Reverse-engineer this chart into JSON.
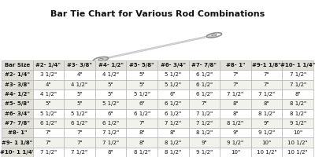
{
  "title": "Bar Tie Chart for Various Rod Combinations",
  "columns": [
    "Bar Size",
    "#2- 1/4\"",
    "#3- 3/8\"",
    "#4- 1/2\"",
    "#5- 5/8\"",
    "#6- 3/4\"",
    "#7- 7/8\"",
    "#8- 1\"",
    "#9-1 1/8\"",
    "#10- 1 1/4\""
  ],
  "rows": [
    [
      "#2- 1/4\"",
      "3 1/2\"",
      "4\"",
      "4 1/2\"",
      "5\"",
      "5 1/2\"",
      "6 1/2\"",
      "7\"",
      "7\"",
      "7 1/2\""
    ],
    [
      "#3- 3/8\"",
      "4\"",
      "4 1/2\"",
      "5\"",
      "5\"",
      "5 1/2\"",
      "6 1/2\"",
      "7\"",
      "7\"",
      "7 1/2\""
    ],
    [
      "#4- 1/2\"",
      "4 1/2\"",
      "5\"",
      "5\"",
      "5 1/2\"",
      "6\"",
      "6 1/2\"",
      "7 1/2\"",
      "7 1/2\"",
      "8\""
    ],
    [
      "#5- 5/8\"",
      "5\"",
      "5\"",
      "5 1/2\"",
      "6\"",
      "6 1/2\"",
      "7\"",
      "8\"",
      "8\"",
      "8 1/2\""
    ],
    [
      "#6- 3/4\"",
      "5 1/2\"",
      "5 1/2\"",
      "6\"",
      "6 1/2\"",
      "6 1/2\"",
      "7 1/2\"",
      "8\"",
      "8 1/2\"",
      "8 1/2\""
    ],
    [
      "#7- 7/8\"",
      "6 1/2\"",
      "6 1/2\"",
      "6 1/2\"",
      "7\"",
      "7 1/2\"",
      "7 1/2\"",
      "8 1/2\"",
      "9\"",
      "9 1/2\""
    ],
    [
      "#8- 1\"",
      "7\"",
      "7\"",
      "7 1/2\"",
      "8\"",
      "8\"",
      "8 1/2\"",
      "9\"",
      "9 1/2\"",
      "10\""
    ],
    [
      "#9- 1 1/8\"",
      "7\"",
      "7\"",
      "7 1/2\"",
      "8\"",
      "8 1/2\"",
      "9\"",
      "9 1/2\"",
      "10\"",
      "10 1/2\""
    ],
    [
      "#10- 1 1/4\"",
      "7 1/2\"",
      "7 1/2\"",
      "8\"",
      "8 1/2\"",
      "8 1/2\"",
      "9 1/2\"",
      "10\"",
      "10 1/2\"",
      "10 1/2\""
    ]
  ],
  "bg_color": "#ffffff",
  "header_bg": "#e0e0d8",
  "row_bg_odd": "#ffffff",
  "row_bg_even": "#f2f2ec",
  "border_color": "#aaaaaa",
  "text_color": "#111111",
  "title_fontsize": 8.0,
  "cell_fontsize": 5.0,
  "header_fontsize": 5.0,
  "tie_line_color": "#b0b0b0",
  "tie_loop_color": "#909090"
}
